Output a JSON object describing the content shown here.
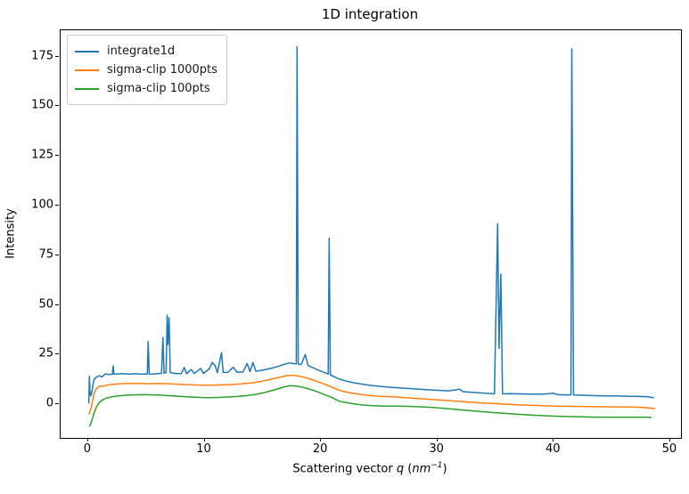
{
  "figure": {
    "title": "1D integration",
    "background": "#ffffff"
  },
  "axis": {
    "ylabel": "Intensity",
    "xlabel_prefix": "Scattering vector ",
    "xlabel_q": "q",
    "xlabel_open": " (",
    "xlabel_unit": "nm",
    "xlabel_sup": "−1",
    "xlabel_close": ")"
  },
  "chart_data": {
    "type": "line",
    "title": "1D integration",
    "xlabel": "Scattering vector q (nm⁻¹)",
    "ylabel": "Intensity",
    "xlim": [
      -2.37,
      50.93
    ],
    "ylim": [
      -17.0,
      188.3
    ],
    "xticks": [
      0,
      10,
      20,
      30,
      40,
      50
    ],
    "yticks": [
      0,
      25,
      50,
      75,
      100,
      125,
      150,
      175
    ],
    "grid": false,
    "legend_position": "upper-left",
    "series": [
      {
        "name": "integrate1d",
        "color": "#1f77b4",
        "points": [
          [
            0.05,
            0.3
          ],
          [
            0.08,
            8.0
          ],
          [
            0.1,
            14.0
          ],
          [
            0.15,
            6.5
          ],
          [
            0.22,
            4.2
          ],
          [
            0.3,
            5.5
          ],
          [
            0.4,
            9.5
          ],
          [
            0.5,
            12.3
          ],
          [
            0.65,
            13.3
          ],
          [
            0.8,
            14.0
          ],
          [
            1.0,
            14.3
          ],
          [
            1.15,
            13.6
          ],
          [
            1.3,
            14.3
          ],
          [
            1.5,
            15.3
          ],
          [
            1.7,
            14.9
          ],
          [
            1.9,
            15.0
          ],
          [
            2.08,
            15.1
          ],
          [
            2.15,
            19.3
          ],
          [
            2.22,
            15.1
          ],
          [
            2.5,
            15.2
          ],
          [
            3.0,
            15.4
          ],
          [
            3.5,
            15.2
          ],
          [
            4.0,
            15.3
          ],
          [
            4.5,
            15.1
          ],
          [
            4.9,
            15.2
          ],
          [
            5.08,
            15.2
          ],
          [
            5.15,
            31.5
          ],
          [
            5.25,
            15.1
          ],
          [
            5.6,
            15.2
          ],
          [
            6.0,
            15.4
          ],
          [
            6.3,
            15.5
          ],
          [
            6.42,
            33.5
          ],
          [
            6.52,
            15.6
          ],
          [
            6.7,
            16.0
          ],
          [
            6.78,
            44.8
          ],
          [
            6.85,
            30.0
          ],
          [
            6.95,
            43.5
          ],
          [
            7.05,
            16.0
          ],
          [
            7.3,
            15.6
          ],
          [
            7.6,
            15.4
          ],
          [
            8.0,
            15.4
          ],
          [
            8.25,
            18.5
          ],
          [
            8.45,
            15.3
          ],
          [
            8.85,
            17.5
          ],
          [
            9.1,
            15.4
          ],
          [
            9.65,
            18.0
          ],
          [
            9.9,
            15.5
          ],
          [
            10.4,
            17.8
          ],
          [
            10.65,
            21.0
          ],
          [
            10.9,
            19.5
          ],
          [
            11.1,
            15.9
          ],
          [
            11.45,
            26.0
          ],
          [
            11.6,
            16.0
          ],
          [
            12.0,
            16.0
          ],
          [
            12.45,
            18.6
          ],
          [
            12.8,
            16.1
          ],
          [
            13.3,
            16.2
          ],
          [
            13.65,
            20.5
          ],
          [
            13.9,
            16.4
          ],
          [
            14.15,
            21.0
          ],
          [
            14.4,
            16.6
          ],
          [
            14.8,
            17.0
          ],
          [
            15.3,
            17.5
          ],
          [
            15.8,
            18.2
          ],
          [
            16.3,
            19.0
          ],
          [
            16.8,
            20.0
          ],
          [
            17.3,
            20.8
          ],
          [
            17.7,
            20.4
          ],
          [
            17.88,
            20.3
          ],
          [
            17.95,
            180.0
          ],
          [
            18.05,
            20.2
          ],
          [
            18.3,
            20.0
          ],
          [
            18.65,
            25.0
          ],
          [
            18.9,
            19.4
          ],
          [
            19.3,
            18.4
          ],
          [
            19.8,
            17.1
          ],
          [
            20.3,
            15.9
          ],
          [
            20.62,
            15.2
          ],
          [
            20.7,
            83.6
          ],
          [
            20.8,
            14.8
          ],
          [
            21.2,
            13.6
          ],
          [
            21.6,
            12.6
          ],
          [
            22.2,
            11.6
          ],
          [
            22.8,
            10.8
          ],
          [
            23.5,
            10.1
          ],
          [
            24.2,
            9.5
          ],
          [
            25.0,
            9.0
          ],
          [
            26.0,
            8.5
          ],
          [
            27.0,
            8.1
          ],
          [
            28.0,
            7.7
          ],
          [
            29.0,
            7.3
          ],
          [
            30.0,
            7.0
          ],
          [
            31.0,
            6.7
          ],
          [
            31.9,
            7.5
          ],
          [
            32.2,
            6.3
          ],
          [
            33.0,
            6.0
          ],
          [
            34.0,
            5.6
          ],
          [
            34.9,
            5.2
          ],
          [
            35.18,
            90.8
          ],
          [
            35.3,
            28.0
          ],
          [
            35.45,
            65.5
          ],
          [
            35.6,
            5.2
          ],
          [
            36.2,
            5.3
          ],
          [
            37.0,
            5.2
          ],
          [
            38.0,
            5.1
          ],
          [
            39.0,
            5.0
          ],
          [
            40.0,
            5.5
          ],
          [
            40.3,
            4.8
          ],
          [
            41.0,
            4.7
          ],
          [
            41.48,
            4.7
          ],
          [
            41.55,
            179.0
          ],
          [
            41.7,
            4.6
          ],
          [
            42.5,
            4.5
          ],
          [
            43.5,
            4.3
          ],
          [
            44.5,
            4.2
          ],
          [
            45.5,
            4.1
          ],
          [
            46.5,
            4.0
          ],
          [
            47.3,
            3.9
          ],
          [
            48.0,
            3.8
          ],
          [
            48.4,
            3.4
          ],
          [
            48.6,
            3.3
          ]
        ]
      },
      {
        "name": "sigma-clip 1000pts",
        "color": "#ff7f0e",
        "points": [
          [
            0.05,
            -5.0
          ],
          [
            0.12,
            -4.5
          ],
          [
            0.25,
            -2.0
          ],
          [
            0.4,
            2.5
          ],
          [
            0.55,
            6.0
          ],
          [
            0.7,
            7.8
          ],
          [
            0.9,
            8.8
          ],
          [
            1.1,
            9.2
          ],
          [
            1.25,
            8.9
          ],
          [
            1.5,
            9.4
          ],
          [
            1.8,
            9.8
          ],
          [
            2.2,
            10.0
          ],
          [
            2.7,
            10.2
          ],
          [
            3.2,
            10.4
          ],
          [
            3.8,
            10.4
          ],
          [
            4.5,
            10.4
          ],
          [
            5.2,
            10.3
          ],
          [
            6.0,
            10.4
          ],
          [
            6.8,
            10.3
          ],
          [
            7.5,
            10.1
          ],
          [
            8.2,
            9.9
          ],
          [
            9.0,
            9.7
          ],
          [
            9.8,
            9.6
          ],
          [
            10.6,
            9.6
          ],
          [
            11.5,
            9.7
          ],
          [
            12.4,
            9.9
          ],
          [
            13.2,
            10.2
          ],
          [
            14.0,
            10.7
          ],
          [
            14.8,
            11.4
          ],
          [
            15.6,
            12.4
          ],
          [
            16.4,
            13.5
          ],
          [
            17.0,
            14.3
          ],
          [
            17.4,
            14.6
          ],
          [
            17.8,
            14.4
          ],
          [
            18.4,
            13.8
          ],
          [
            19.0,
            12.8
          ],
          [
            19.6,
            11.6
          ],
          [
            20.2,
            10.3
          ],
          [
            20.8,
            8.9
          ],
          [
            21.4,
            7.4
          ],
          [
            22.0,
            6.3
          ],
          [
            22.7,
            5.5
          ],
          [
            23.5,
            4.8
          ],
          [
            24.3,
            4.3
          ],
          [
            25.2,
            4.0
          ],
          [
            26.2,
            3.7
          ],
          [
            27.2,
            3.3
          ],
          [
            28.2,
            2.9
          ],
          [
            29.2,
            2.5
          ],
          [
            30.2,
            2.1
          ],
          [
            31.2,
            1.7
          ],
          [
            32.2,
            1.3
          ],
          [
            33.2,
            0.9
          ],
          [
            34.2,
            0.5
          ],
          [
            35.2,
            0.2
          ],
          [
            36.2,
            -0.1
          ],
          [
            37.2,
            -0.4
          ],
          [
            38.2,
            -0.6
          ],
          [
            39.2,
            -0.8
          ],
          [
            40.2,
            -1.0
          ],
          [
            41.5,
            -1.1
          ],
          [
            43.0,
            -1.2
          ],
          [
            44.5,
            -1.3
          ],
          [
            46.0,
            -1.4
          ],
          [
            47.0,
            -1.5
          ],
          [
            47.8,
            -1.7
          ],
          [
            48.3,
            -2.0
          ],
          [
            48.7,
            -2.2
          ]
        ]
      },
      {
        "name": "sigma-clip 100pts",
        "color": "#2ca02c",
        "points": [
          [
            0.1,
            -11.3
          ],
          [
            0.2,
            -10.2
          ],
          [
            0.35,
            -7.5
          ],
          [
            0.5,
            -4.5
          ],
          [
            0.7,
            -1.5
          ],
          [
            0.9,
            0.5
          ],
          [
            1.2,
            2.0
          ],
          [
            1.5,
            2.9
          ],
          [
            2.0,
            3.7
          ],
          [
            2.6,
            4.2
          ],
          [
            3.3,
            4.5
          ],
          [
            4.0,
            4.7
          ],
          [
            4.8,
            4.8
          ],
          [
            5.6,
            4.7
          ],
          [
            6.4,
            4.5
          ],
          [
            7.2,
            4.2
          ],
          [
            8.0,
            3.9
          ],
          [
            8.8,
            3.6
          ],
          [
            9.6,
            3.4
          ],
          [
            10.4,
            3.3
          ],
          [
            11.2,
            3.4
          ],
          [
            12.0,
            3.6
          ],
          [
            12.8,
            3.9
          ],
          [
            13.6,
            4.3
          ],
          [
            14.4,
            4.9
          ],
          [
            15.2,
            5.9
          ],
          [
            16.0,
            7.2
          ],
          [
            16.8,
            8.6
          ],
          [
            17.3,
            9.3
          ],
          [
            17.7,
            9.2
          ],
          [
            18.3,
            8.7
          ],
          [
            19.0,
            7.6
          ],
          [
            19.7,
            6.2
          ],
          [
            20.4,
            4.6
          ],
          [
            21.0,
            3.2
          ],
          [
            21.6,
            1.4
          ],
          [
            22.3,
            0.7
          ],
          [
            23.0,
            0.0
          ],
          [
            23.8,
            -0.5
          ],
          [
            24.6,
            -0.8
          ],
          [
            25.5,
            -1.0
          ],
          [
            26.5,
            -1.0
          ],
          [
            27.5,
            -1.1
          ],
          [
            28.5,
            -1.3
          ],
          [
            29.5,
            -1.6
          ],
          [
            30.5,
            -2.1
          ],
          [
            31.5,
            -2.6
          ],
          [
            32.5,
            -3.1
          ],
          [
            33.5,
            -3.6
          ],
          [
            34.5,
            -4.1
          ],
          [
            35.5,
            -4.5
          ],
          [
            36.5,
            -4.9
          ],
          [
            37.5,
            -5.3
          ],
          [
            38.5,
            -5.6
          ],
          [
            39.5,
            -5.9
          ],
          [
            40.5,
            -6.1
          ],
          [
            41.5,
            -6.3
          ],
          [
            42.5,
            -6.4
          ],
          [
            43.5,
            -6.5
          ],
          [
            45.0,
            -6.6
          ],
          [
            46.5,
            -6.6
          ],
          [
            47.5,
            -6.6
          ],
          [
            48.1,
            -6.6
          ],
          [
            48.4,
            -6.7
          ]
        ]
      }
    ]
  }
}
